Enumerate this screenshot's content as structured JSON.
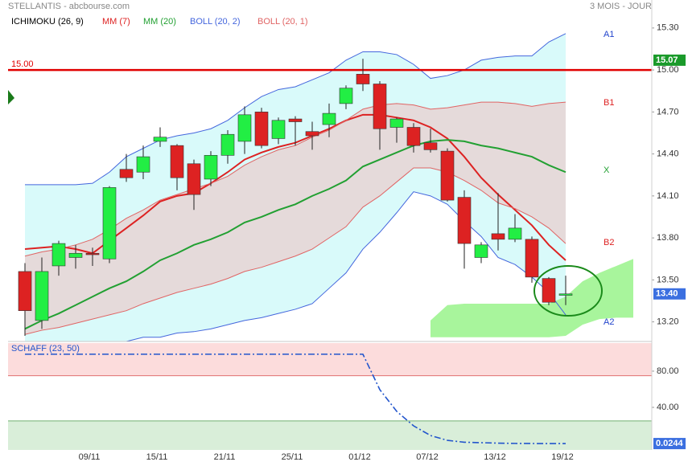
{
  "header": {
    "source": "STELLANTIS - abcbourse.com",
    "period": "3 MOIS - JOUR"
  },
  "chart_data": [
    {
      "type": "candlestick",
      "categories": [
        null,
        null,
        null,
        null,
        "09/11",
        null,
        null,
        null,
        "15/11",
        null,
        null,
        null,
        "21/11",
        null,
        null,
        null,
        "25/11",
        null,
        null,
        null,
        "01/12",
        null,
        null,
        null,
        "07/12",
        null,
        null,
        null,
        "13/12",
        null,
        null,
        null,
        "19/12",
        null,
        null,
        null,
        null
      ],
      "open": [
        13.56,
        13.21,
        13.6,
        13.66,
        13.69,
        13.65,
        14.29,
        14.27,
        14.49,
        14.46,
        14.33,
        14.22,
        14.39,
        14.49,
        14.7,
        14.51,
        14.65,
        14.56,
        14.61,
        14.76,
        14.97,
        14.9,
        14.59,
        14.59,
        14.48,
        14.42,
        14.09,
        13.66,
        13.83,
        13.79,
        13.79,
        13.51,
        13.39,
        null,
        null,
        null,
        null
      ],
      "high": [
        13.62,
        13.66,
        13.78,
        13.75,
        13.73,
        14.17,
        14.4,
        14.46,
        14.59,
        14.47,
        14.36,
        14.42,
        14.57,
        14.74,
        14.73,
        14.66,
        14.67,
        14.63,
        14.76,
        14.89,
        15.08,
        14.92,
        14.66,
        14.62,
        14.58,
        14.44,
        14.14,
        13.77,
        14.12,
        13.97,
        13.81,
        13.52,
        13.53,
        null,
        null,
        null,
        null
      ],
      "low": [
        13.1,
        13.15,
        13.53,
        13.58,
        13.6,
        13.62,
        14.2,
        14.22,
        14.45,
        14.14,
        14.0,
        14.17,
        14.33,
        14.4,
        14.44,
        14.47,
        14.46,
        14.43,
        14.52,
        14.72,
        14.85,
        14.43,
        14.48,
        14.41,
        14.41,
        14.06,
        13.58,
        13.62,
        13.71,
        13.77,
        13.48,
        13.32,
        13.32,
        null,
        null,
        null,
        null
      ],
      "close": [
        13.28,
        13.56,
        13.76,
        13.69,
        13.68,
        14.16,
        14.23,
        14.38,
        14.52,
        14.23,
        14.11,
        14.39,
        14.54,
        14.68,
        14.46,
        14.64,
        14.63,
        14.53,
        14.69,
        14.87,
        14.9,
        14.58,
        14.65,
        14.46,
        14.43,
        14.07,
        13.76,
        13.75,
        13.79,
        13.87,
        13.52,
        13.34,
        13.4,
        null,
        null,
        null,
        null
      ],
      "up_color": "#22ee44",
      "down_color": "#dd2222",
      "ichimoku": {
        "name": "ICHIMOKU (26, 9)",
        "color": "#000000",
        "fill": "#a8f59c",
        "span_a": [
          null,
          null,
          null,
          null,
          null,
          null,
          null,
          null,
          null,
          null,
          null,
          null,
          null,
          null,
          null,
          null,
          null,
          null,
          null,
          null,
          null,
          null,
          null,
          null,
          13.21,
          13.32,
          13.33,
          13.33,
          13.33,
          13.33,
          13.33,
          13.33,
          13.38,
          13.49,
          13.55,
          13.6,
          13.65
        ],
        "span_b": [
          null,
          null,
          null,
          null,
          null,
          null,
          null,
          null,
          null,
          null,
          null,
          null,
          null,
          null,
          null,
          null,
          null,
          null,
          null,
          null,
          null,
          null,
          null,
          null,
          13.09,
          13.09,
          13.09,
          13.09,
          13.09,
          13.09,
          13.09,
          13.09,
          13.1,
          13.18,
          13.22,
          13.23,
          13.23
        ]
      },
      "series": [
        {
          "name": "MM (7)",
          "color": "#dd2222",
          "values": [
            13.72,
            13.73,
            13.74,
            13.72,
            13.69,
            13.78,
            13.87,
            13.96,
            14.06,
            14.1,
            14.12,
            14.19,
            14.27,
            14.36,
            14.41,
            14.45,
            14.48,
            14.53,
            14.58,
            14.64,
            14.68,
            14.68,
            14.66,
            14.64,
            14.59,
            14.51,
            14.38,
            14.23,
            14.11,
            14.0,
            13.89,
            13.75,
            13.64,
            null,
            null,
            null,
            null
          ]
        },
        {
          "name": "MM (20)",
          "color": "#22a032",
          "values": [
            13.15,
            13.21,
            13.26,
            13.32,
            13.38,
            13.44,
            13.49,
            13.56,
            13.64,
            13.69,
            13.75,
            13.79,
            13.84,
            13.91,
            13.95,
            14.0,
            14.04,
            14.1,
            14.15,
            14.21,
            14.31,
            14.36,
            14.41,
            14.46,
            14.49,
            14.5,
            14.49,
            14.46,
            14.44,
            14.41,
            14.38,
            14.32,
            14.27,
            null,
            null,
            null,
            null
          ]
        },
        {
          "name": "BOLL (20, 2)",
          "color": "#4466dd",
          "fill": "#d9fafa",
          "upper": [
            14.18,
            14.18,
            14.18,
            14.18,
            14.19,
            14.27,
            14.38,
            14.44,
            14.5,
            14.53,
            14.55,
            14.58,
            14.64,
            14.73,
            14.81,
            14.86,
            14.88,
            14.93,
            14.98,
            15.07,
            15.13,
            15.13,
            15.11,
            15.04,
            14.94,
            14.96,
            15.0,
            15.07,
            15.09,
            15.1,
            15.1,
            15.2,
            15.26,
            null,
            null,
            null,
            null
          ],
          "lower": [
            13.06,
            13.06,
            13.06,
            13.06,
            13.06,
            13.06,
            13.06,
            13.09,
            13.09,
            13.12,
            13.13,
            13.15,
            13.18,
            13.21,
            13.23,
            13.26,
            13.29,
            13.33,
            13.44,
            13.55,
            13.72,
            13.84,
            13.98,
            14.13,
            14.1,
            14.04,
            13.92,
            13.81,
            13.66,
            13.61,
            13.52,
            13.41,
            13.25,
            null,
            null,
            null,
            null
          ]
        },
        {
          "name": "BOLL (20, 1)",
          "color": "#e06464",
          "fill": "#e5dada",
          "upper": [
            13.67,
            13.7,
            13.72,
            13.75,
            13.79,
            13.86,
            13.94,
            14.0,
            14.07,
            14.11,
            14.15,
            14.19,
            14.24,
            14.32,
            14.38,
            14.43,
            14.46,
            14.52,
            14.57,
            14.64,
            14.72,
            14.75,
            14.76,
            14.75,
            14.72,
            14.73,
            14.75,
            14.77,
            14.77,
            14.76,
            14.74,
            14.76,
            14.77,
            null,
            null,
            null,
            null
          ],
          "lower": [
            13.11,
            13.14,
            13.16,
            13.19,
            13.22,
            13.25,
            13.28,
            13.33,
            13.37,
            13.41,
            13.44,
            13.47,
            13.51,
            13.56,
            13.59,
            13.63,
            13.67,
            13.72,
            13.8,
            13.88,
            14.02,
            14.1,
            14.2,
            14.3,
            14.3,
            14.27,
            14.21,
            14.14,
            14.05,
            14.01,
            13.95,
            13.87,
            13.76,
            null,
            null,
            null,
            null
          ]
        }
      ],
      "ichimoku_labels": [
        "A1",
        "B1",
        "X",
        "B2",
        "A2"
      ],
      "hline": {
        "value": 15,
        "label": "15.00",
        "color": "#e00000"
      },
      "markers": [
        {
          "value": 15.07,
          "label": "15.07",
          "color": "#1a9a2a"
        },
        {
          "value": 13.4,
          "label": "13.40",
          "color": "#3b6fe0"
        }
      ],
      "ylim": [
        13.06,
        15.5
      ],
      "yticks": [
        {
          "value": 15.3,
          "label": "15.30"
        },
        {
          "value": 15,
          "label": "15.00"
        },
        {
          "value": 14.7,
          "label": "14.70"
        },
        {
          "value": 14.4,
          "label": "14.40"
        },
        {
          "value": 14.1,
          "label": "14.10"
        },
        {
          "value": 13.8,
          "label": "13.80"
        },
        {
          "value": 13.5,
          "label": "13.50"
        },
        {
          "value": 13.2,
          "label": "13.20"
        }
      ],
      "grid": false
    },
    {
      "type": "line",
      "title": "SCHAFF (23, 50)",
      "color": "#2255cc",
      "values": [
        98.7,
        98.7,
        98.7,
        98.7,
        98.7,
        98.7,
        98.7,
        98.7,
        98.7,
        98.7,
        98.7,
        98.7,
        98.7,
        98.7,
        98.7,
        98.7,
        98.7,
        98.7,
        98.7,
        98.7,
        98.7,
        59.6,
        35.6,
        19.6,
        8.9,
        3.6,
        1.5,
        1.0,
        0.5,
        0.2,
        0.1,
        0.05,
        0.0244,
        null,
        null,
        null,
        null
      ],
      "overbought": 75,
      "oversold": 25,
      "ylim": [
        -7,
        111
      ],
      "yticks": [
        {
          "value": 80,
          "label": "80.00"
        },
        {
          "value": 40,
          "label": "40.00"
        }
      ],
      "grid": false
    }
  ]
}
